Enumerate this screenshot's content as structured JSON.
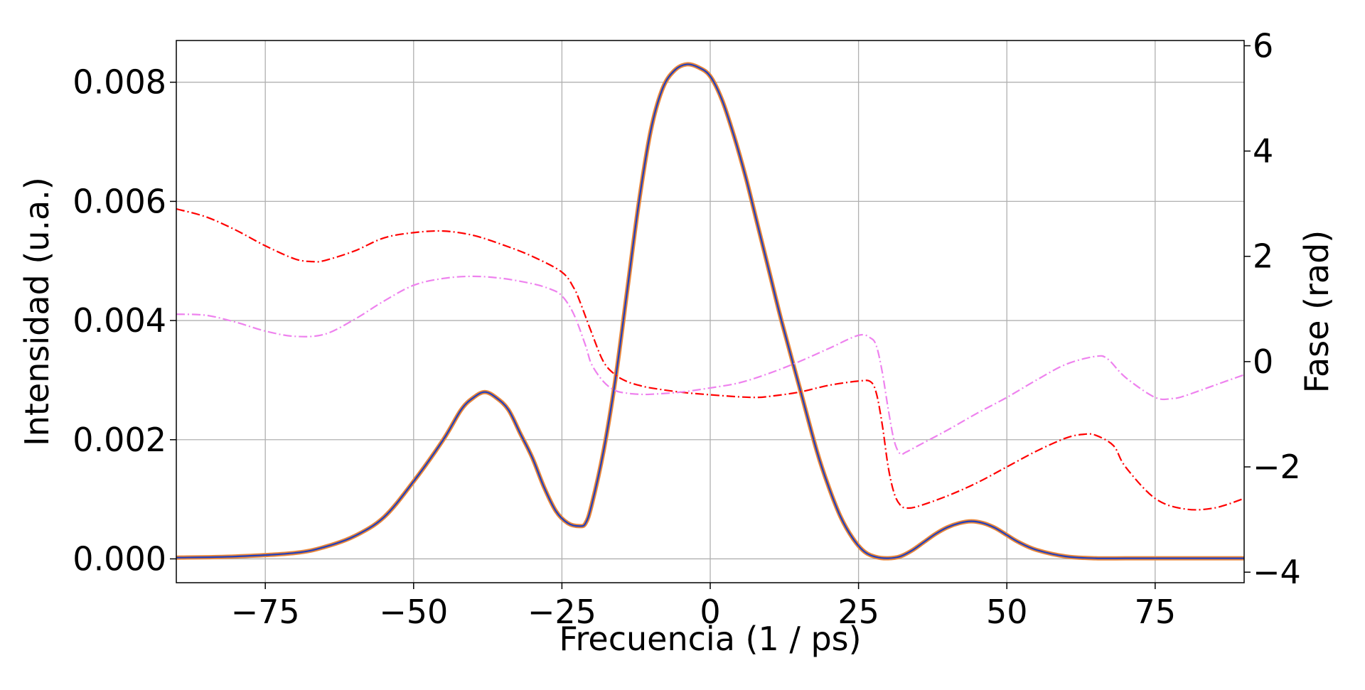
{
  "chart_data": {
    "type": "line",
    "title": "",
    "xlabel": "Frecuencia (1 / ps)",
    "ylabel": "Intensidad (u.a.)",
    "y2label": "Fase (rad)",
    "xlim": [
      -90,
      90
    ],
    "ylim": [
      -0.0004,
      0.0087
    ],
    "y2lim": [
      -4.2,
      6.1
    ],
    "grid": true,
    "legend": "none",
    "x_ticks": [
      -75,
      -50,
      -25,
      0,
      25,
      50,
      75
    ],
    "x_tick_labels": [
      "−75",
      "−50",
      "−25",
      "0",
      "25",
      "50",
      "75"
    ],
    "y_ticks": [
      0,
      0.002,
      0.004,
      0.006,
      0.008
    ],
    "y_tick_labels": [
      "0.000",
      "0.002",
      "0.004",
      "0.006",
      "0.008"
    ],
    "y2_ticks": [
      -4,
      -2,
      0,
      2,
      4,
      6
    ],
    "y2_tick_labels": [
      "−4",
      "−2",
      "0",
      "2",
      "4",
      "6"
    ],
    "series": [
      {
        "axis": "left",
        "color": "#1f3fbf",
        "color2": "#e8863a",
        "style": "solid",
        "x": [
          -90,
          -80,
          -70,
          -65,
          -60,
          -55,
          -50,
          -45,
          -42,
          -40,
          -38,
          -36,
          -34,
          -32,
          -30,
          -28,
          -26,
          -24,
          -22,
          -21,
          -20,
          -18,
          -16,
          -14,
          -12,
          -10,
          -8,
          -6,
          -4,
          -2,
          0,
          2,
          4,
          6,
          8,
          10,
          12,
          15,
          18,
          20,
          22,
          24,
          26,
          28,
          30,
          32,
          34,
          36,
          38,
          40,
          42,
          44,
          46,
          48,
          50,
          52,
          55,
          60,
          65,
          70,
          80,
          90
        ],
        "y": [
          2e-05,
          4e-05,
          0.0001,
          0.0002,
          0.00038,
          0.0007,
          0.0013,
          0.002,
          0.0025,
          0.0027,
          0.0028,
          0.0027,
          0.0025,
          0.0021,
          0.0017,
          0.0012,
          0.0008,
          0.0006,
          0.00055,
          0.0006,
          0.0009,
          0.0018,
          0.003,
          0.0045,
          0.006,
          0.0072,
          0.0079,
          0.0082,
          0.0083,
          0.00825,
          0.0081,
          0.0077,
          0.0071,
          0.0064,
          0.0056,
          0.0048,
          0.004,
          0.0029,
          0.0018,
          0.0012,
          0.0007,
          0.00035,
          0.00012,
          3e-05,
          1e-05,
          4e-05,
          0.00014,
          0.00028,
          0.00042,
          0.00053,
          0.0006,
          0.00063,
          0.0006,
          0.00052,
          0.0004,
          0.00028,
          0.00015,
          4e-05,
          1e-05,
          1e-05,
          1e-05,
          1e-05
        ]
      },
      {
        "axis": "right",
        "color": "#ff0000",
        "style": "dashdot",
        "x": [
          -90,
          -85,
          -80,
          -75,
          -70,
          -67,
          -65,
          -60,
          -55,
          -50,
          -45,
          -40,
          -35,
          -30,
          -25,
          -23,
          -22,
          -20,
          -18,
          -16,
          -14,
          -12,
          -10,
          -5,
          0,
          5,
          8,
          10,
          15,
          20,
          25,
          27,
          28,
          29,
          30,
          31,
          32,
          33,
          35,
          40,
          45,
          50,
          55,
          60,
          63,
          65,
          68,
          70,
          75,
          80,
          85,
          90
        ],
        "y": [
          2.9,
          2.75,
          2.5,
          2.2,
          1.95,
          1.9,
          1.92,
          2.1,
          2.35,
          2.45,
          2.48,
          2.4,
          2.22,
          2.0,
          1.7,
          1.4,
          1.15,
          0.55,
          0.0,
          -0.25,
          -0.38,
          -0.45,
          -0.5,
          -0.58,
          -0.63,
          -0.67,
          -0.68,
          -0.66,
          -0.58,
          -0.45,
          -0.37,
          -0.38,
          -0.6,
          -1.2,
          -2.0,
          -2.5,
          -2.72,
          -2.78,
          -2.75,
          -2.55,
          -2.3,
          -2.0,
          -1.7,
          -1.45,
          -1.38,
          -1.4,
          -1.6,
          -2.0,
          -2.6,
          -2.8,
          -2.78,
          -2.6
        ]
      },
      {
        "axis": "right",
        "color": "#ee82ee",
        "style": "dashdot",
        "x": [
          -90,
          -85,
          -80,
          -75,
          -70,
          -65,
          -60,
          -55,
          -50,
          -45,
          -40,
          -35,
          -30,
          -27,
          -25,
          -23,
          -21,
          -20,
          -18,
          -16,
          -14,
          -12,
          -10,
          -5,
          0,
          5,
          10,
          15,
          20,
          25,
          27,
          28,
          29,
          30,
          31,
          32,
          33,
          35,
          40,
          45,
          50,
          55,
          60,
          65,
          67,
          70,
          75,
          78,
          80,
          85,
          90
        ],
        "y": [
          0.9,
          0.88,
          0.75,
          0.58,
          0.48,
          0.52,
          0.8,
          1.15,
          1.45,
          1.58,
          1.62,
          1.58,
          1.48,
          1.38,
          1.25,
          0.9,
          0.3,
          -0.05,
          -0.38,
          -0.55,
          -0.6,
          -0.62,
          -0.62,
          -0.58,
          -0.5,
          -0.4,
          -0.22,
          0.0,
          0.25,
          0.5,
          0.45,
          0.3,
          -0.2,
          -0.9,
          -1.5,
          -1.75,
          -1.72,
          -1.6,
          -1.3,
          -0.98,
          -0.68,
          -0.35,
          -0.05,
          0.1,
          0.05,
          -0.3,
          -0.68,
          -0.7,
          -0.65,
          -0.45,
          -0.25
        ]
      }
    ]
  }
}
